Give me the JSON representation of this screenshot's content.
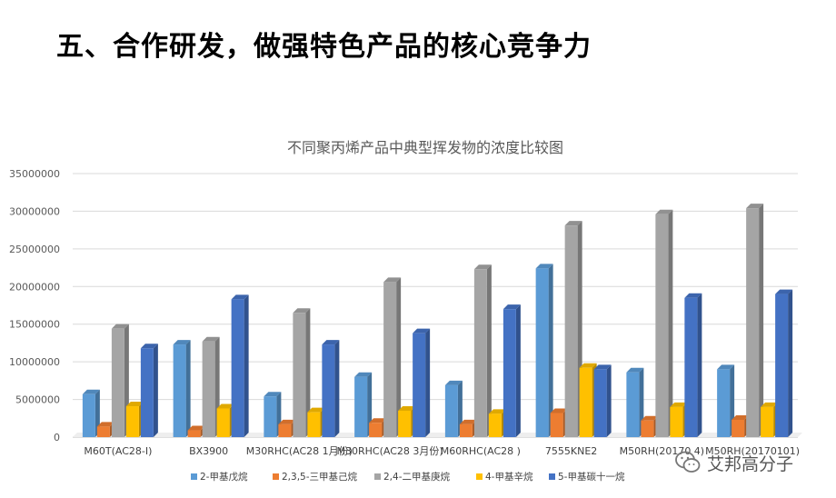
{
  "slide": {
    "title": "五、合作研发，做强特色产品的核心竞争力"
  },
  "watermark": {
    "icon": "wechat-icon",
    "text": "艾邦高分子"
  },
  "chart_data": {
    "type": "bar",
    "title": "不同聚丙烯产品中典型挥发物的浓度比较图",
    "xlabel": "",
    "ylabel": "",
    "ylim": [
      0,
      35000000
    ],
    "yticks": [
      "35000000",
      "30000000",
      "25000000",
      "20000000",
      "15000000",
      "10000000",
      "5000000",
      "0"
    ],
    "grid": true,
    "legend_position": "bottom",
    "categories": [
      "M60T(AC28-I)",
      "BX3900",
      "M30RHC(AC28 1月份)",
      "M30RHC(AC28 3月份)",
      "M60RHC(AC28 )",
      "7555KNE2",
      "M50RH(20170 4)",
      "M50RH(20170101)"
    ],
    "series": [
      {
        "name": "2-甲基戊烷",
        "color": "#5B9BD5",
        "values": [
          5700000,
          12300000,
          5400000,
          8000000,
          6900000,
          22400000,
          8600000,
          9000000
        ]
      },
      {
        "name": "2,3,5-三甲基己烷",
        "color": "#ED7D31",
        "values": [
          1400000,
          900000,
          1700000,
          1900000,
          1700000,
          3200000,
          2200000,
          2300000
        ]
      },
      {
        "name": "2,4-二甲基庚烷",
        "color": "#A5A5A5",
        "values": [
          14400000,
          12700000,
          16500000,
          20600000,
          22300000,
          28100000,
          29600000,
          30400000
        ]
      },
      {
        "name": "4-甲基辛烷",
        "color": "#FFC000",
        "values": [
          4100000,
          3800000,
          3300000,
          3500000,
          3100000,
          9200000,
          4000000,
          4000000
        ]
      },
      {
        "name": "5-甲基碳十一烷",
        "color": "#4472C4",
        "values": [
          11800000,
          18300000,
          12300000,
          13800000,
          17000000,
          9000000,
          18500000,
          19000000
        ]
      }
    ]
  }
}
